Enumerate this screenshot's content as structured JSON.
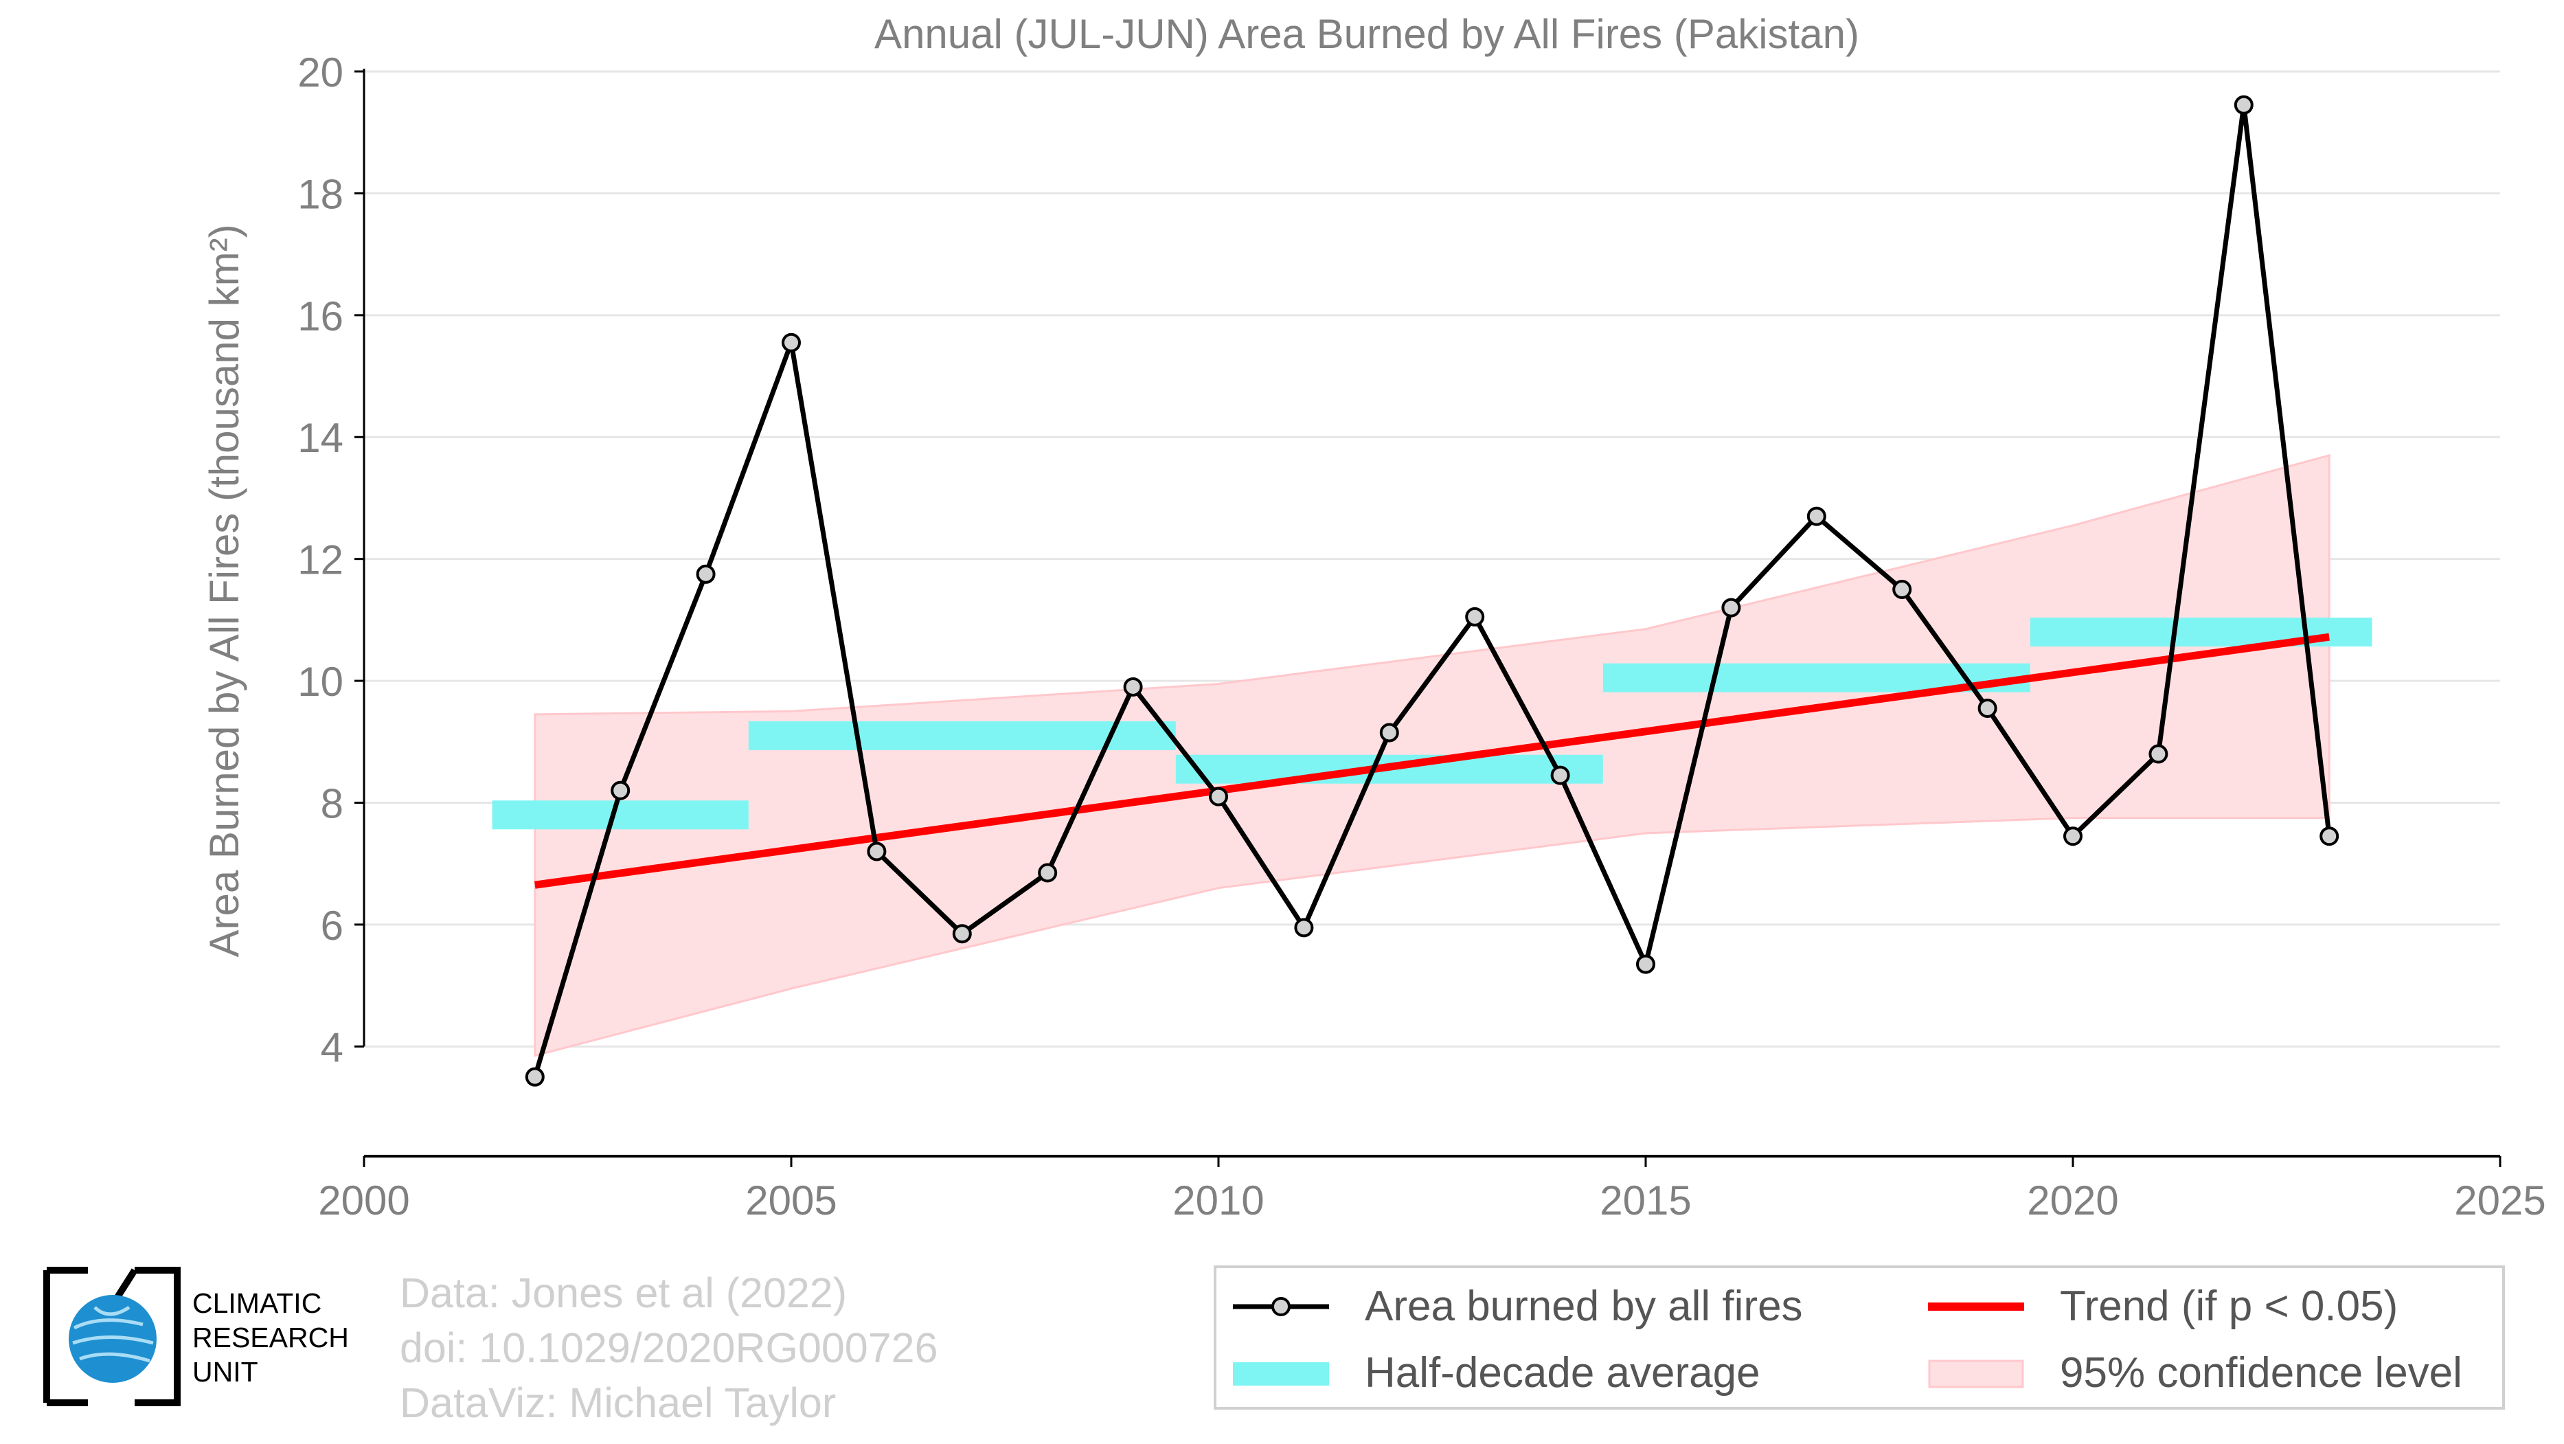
{
  "chart_data": {
    "type": "line",
    "title": "Annual (JUL-JUN) Area Burned by All Fires (Pakistan)",
    "xlabel": "",
    "ylabel": "Area Burned by All Fires (thousand km²)",
    "xlim": [
      2000,
      2025
    ],
    "ylim": [
      2.2,
      20
    ],
    "xticks": [
      2000,
      2005,
      2010,
      2015,
      2020,
      2025
    ],
    "yticks": [
      4,
      6,
      8,
      10,
      12,
      14,
      16,
      18,
      20
    ],
    "grid": true,
    "series": [
      {
        "name": "Area burned by all fires",
        "kind": "line-markers",
        "color": "#000000",
        "x": [
          2002,
          2003,
          2004,
          2005,
          2006,
          2007,
          2008,
          2009,
          2010,
          2011,
          2012,
          2013,
          2014,
          2015,
          2016,
          2017,
          2018,
          2019,
          2020,
          2021,
          2022,
          2023
        ],
        "y": [
          3.5,
          8.2,
          11.75,
          15.55,
          7.2,
          5.85,
          6.85,
          9.9,
          8.1,
          5.95,
          9.15,
          11.05,
          8.45,
          5.35,
          11.2,
          12.7,
          11.5,
          9.55,
          7.45,
          8.8,
          19.45,
          7.45
        ]
      },
      {
        "name": "Half-decade average",
        "kind": "segments",
        "color": "#7ff5f3",
        "segments": [
          {
            "x0": 2001.5,
            "x1": 2004.5,
            "y": 7.8
          },
          {
            "x0": 2004.5,
            "x1": 2009.5,
            "y": 9.1
          },
          {
            "x0": 2009.5,
            "x1": 2014.5,
            "y": 8.55
          },
          {
            "x0": 2014.5,
            "x1": 2019.5,
            "y": 10.05
          },
          {
            "x0": 2019.5,
            "x1": 2023.5,
            "y": 10.8
          }
        ]
      },
      {
        "name": "Trend (if p < 0.05)",
        "kind": "trend",
        "color": "#ff0000",
        "x": [
          2002,
          2023
        ],
        "y": [
          6.65,
          10.72
        ]
      },
      {
        "name": "95% confidence level",
        "kind": "band",
        "color": "#ffe0e2",
        "x": [
          2002,
          2005,
          2010,
          2015,
          2020,
          2023
        ],
        "lower": [
          3.85,
          4.95,
          6.6,
          7.5,
          7.75,
          7.75
        ],
        "upper": [
          9.45,
          9.5,
          9.95,
          10.85,
          12.55,
          13.7
        ]
      }
    ]
  },
  "credits": {
    "line1": "Data: Jones et al (2022)",
    "line2": "doi: 10.1029/2020RG000726",
    "line3": "DataViz: Michael Taylor"
  },
  "logo": {
    "line1": "CLIMATIC",
    "line2": "RESEARCH",
    "line3": "UNIT"
  },
  "legend": {
    "items": [
      {
        "label": "Area burned by all fires"
      },
      {
        "label": "Trend (if p < 0.05)"
      },
      {
        "label": "Half-decade average"
      },
      {
        "label": "95% confidence level"
      }
    ]
  },
  "colors": {
    "line": "#000000",
    "marker_fill": "#d3d3d3",
    "trend": "#ff0000",
    "half_decade": "#7ff5f3",
    "confidence": "#ffe0e2",
    "axis_text": "#808080",
    "grid": "#e6e6e6"
  }
}
